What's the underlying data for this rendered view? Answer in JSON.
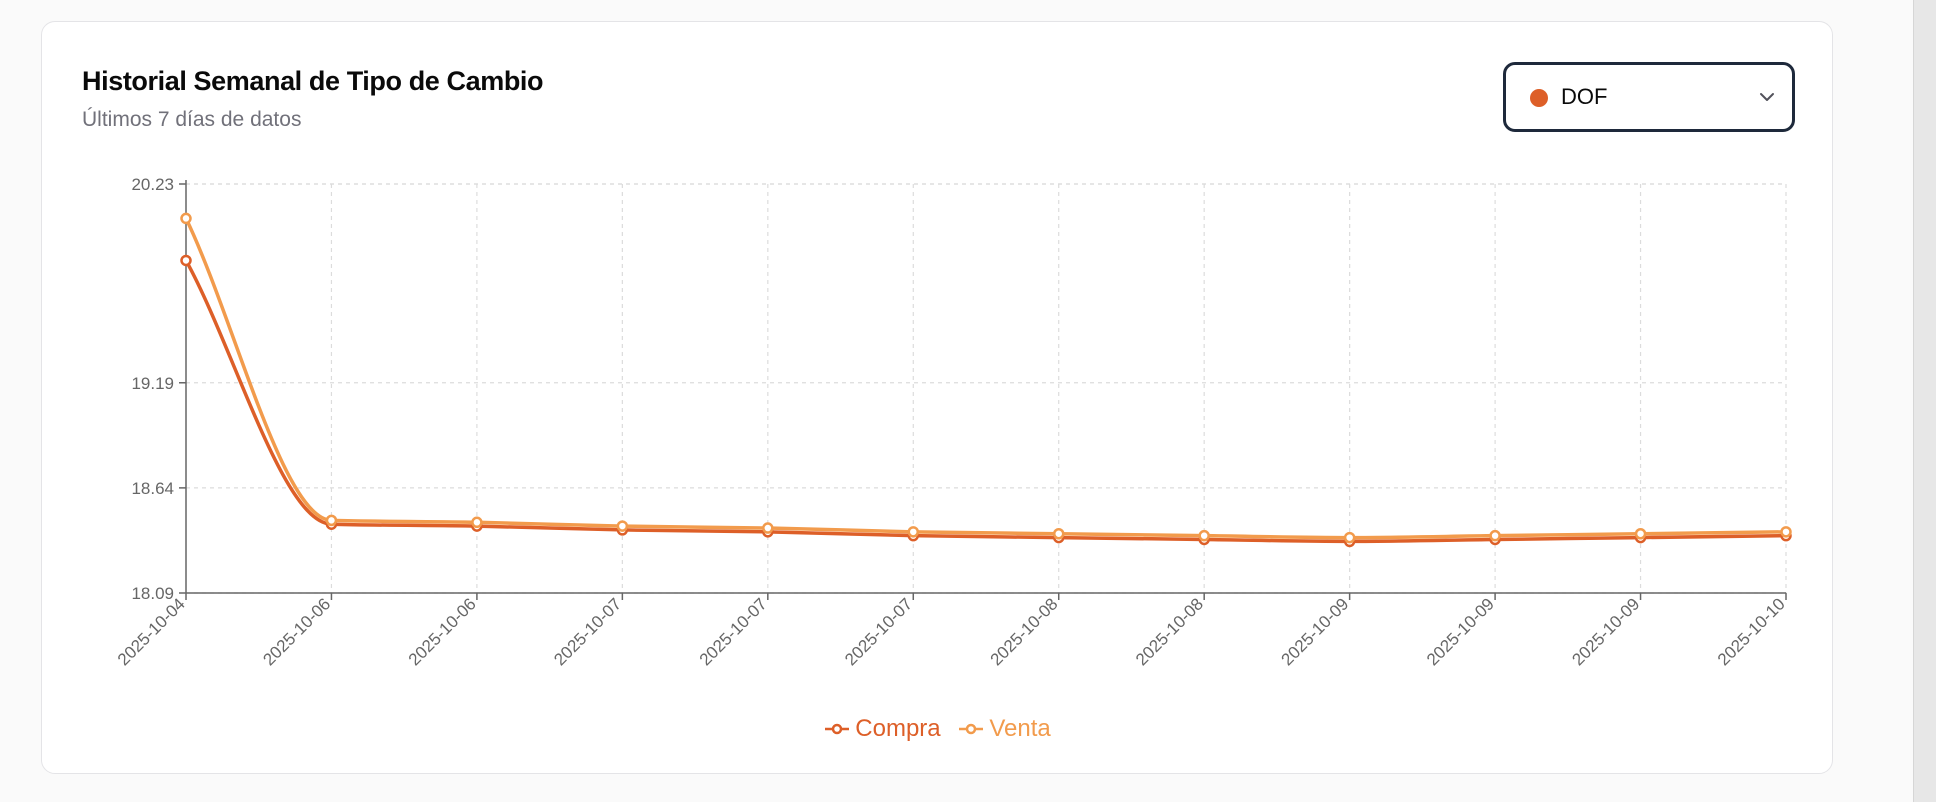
{
  "card": {
    "title": "Historial Semanal de Tipo de Cambio",
    "subtitle": "Últimos 7 días de datos"
  },
  "source_select": {
    "selected": "DOF",
    "dot_color": "#dd5f28"
  },
  "colors": {
    "compra": "#dd5f28",
    "venta": "#f29b4c",
    "axis": "#666666",
    "grid": "#dcdcdc",
    "tick_text": "#666666"
  },
  "chart_data": {
    "type": "line",
    "title": "",
    "xlabel": "",
    "ylabel": "",
    "x": [
      "2025-10-04",
      "2025-10-06",
      "2025-10-06",
      "2025-10-07",
      "2025-10-07",
      "2025-10-07",
      "2025-10-08",
      "2025-10-08",
      "2025-10-09",
      "2025-10-09",
      "2025-10-09",
      "2025-10-10"
    ],
    "series": [
      {
        "name": "Compra",
        "values": [
          19.83,
          18.45,
          18.44,
          18.42,
          18.41,
          18.39,
          18.38,
          18.37,
          18.36,
          18.37,
          18.38,
          18.39
        ]
      },
      {
        "name": "Venta",
        "values": [
          20.05,
          18.47,
          18.46,
          18.44,
          18.43,
          18.41,
          18.4,
          18.39,
          18.38,
          18.39,
          18.4,
          18.41
        ]
      }
    ],
    "ylim": [
      18.09,
      20.23
    ],
    "y_ticks": [
      "18.09",
      "18.64",
      "19.19",
      "20.23"
    ],
    "grid": true,
    "grid_style": "dashed",
    "curve": "smooth",
    "legend_position": "bottom-center"
  }
}
